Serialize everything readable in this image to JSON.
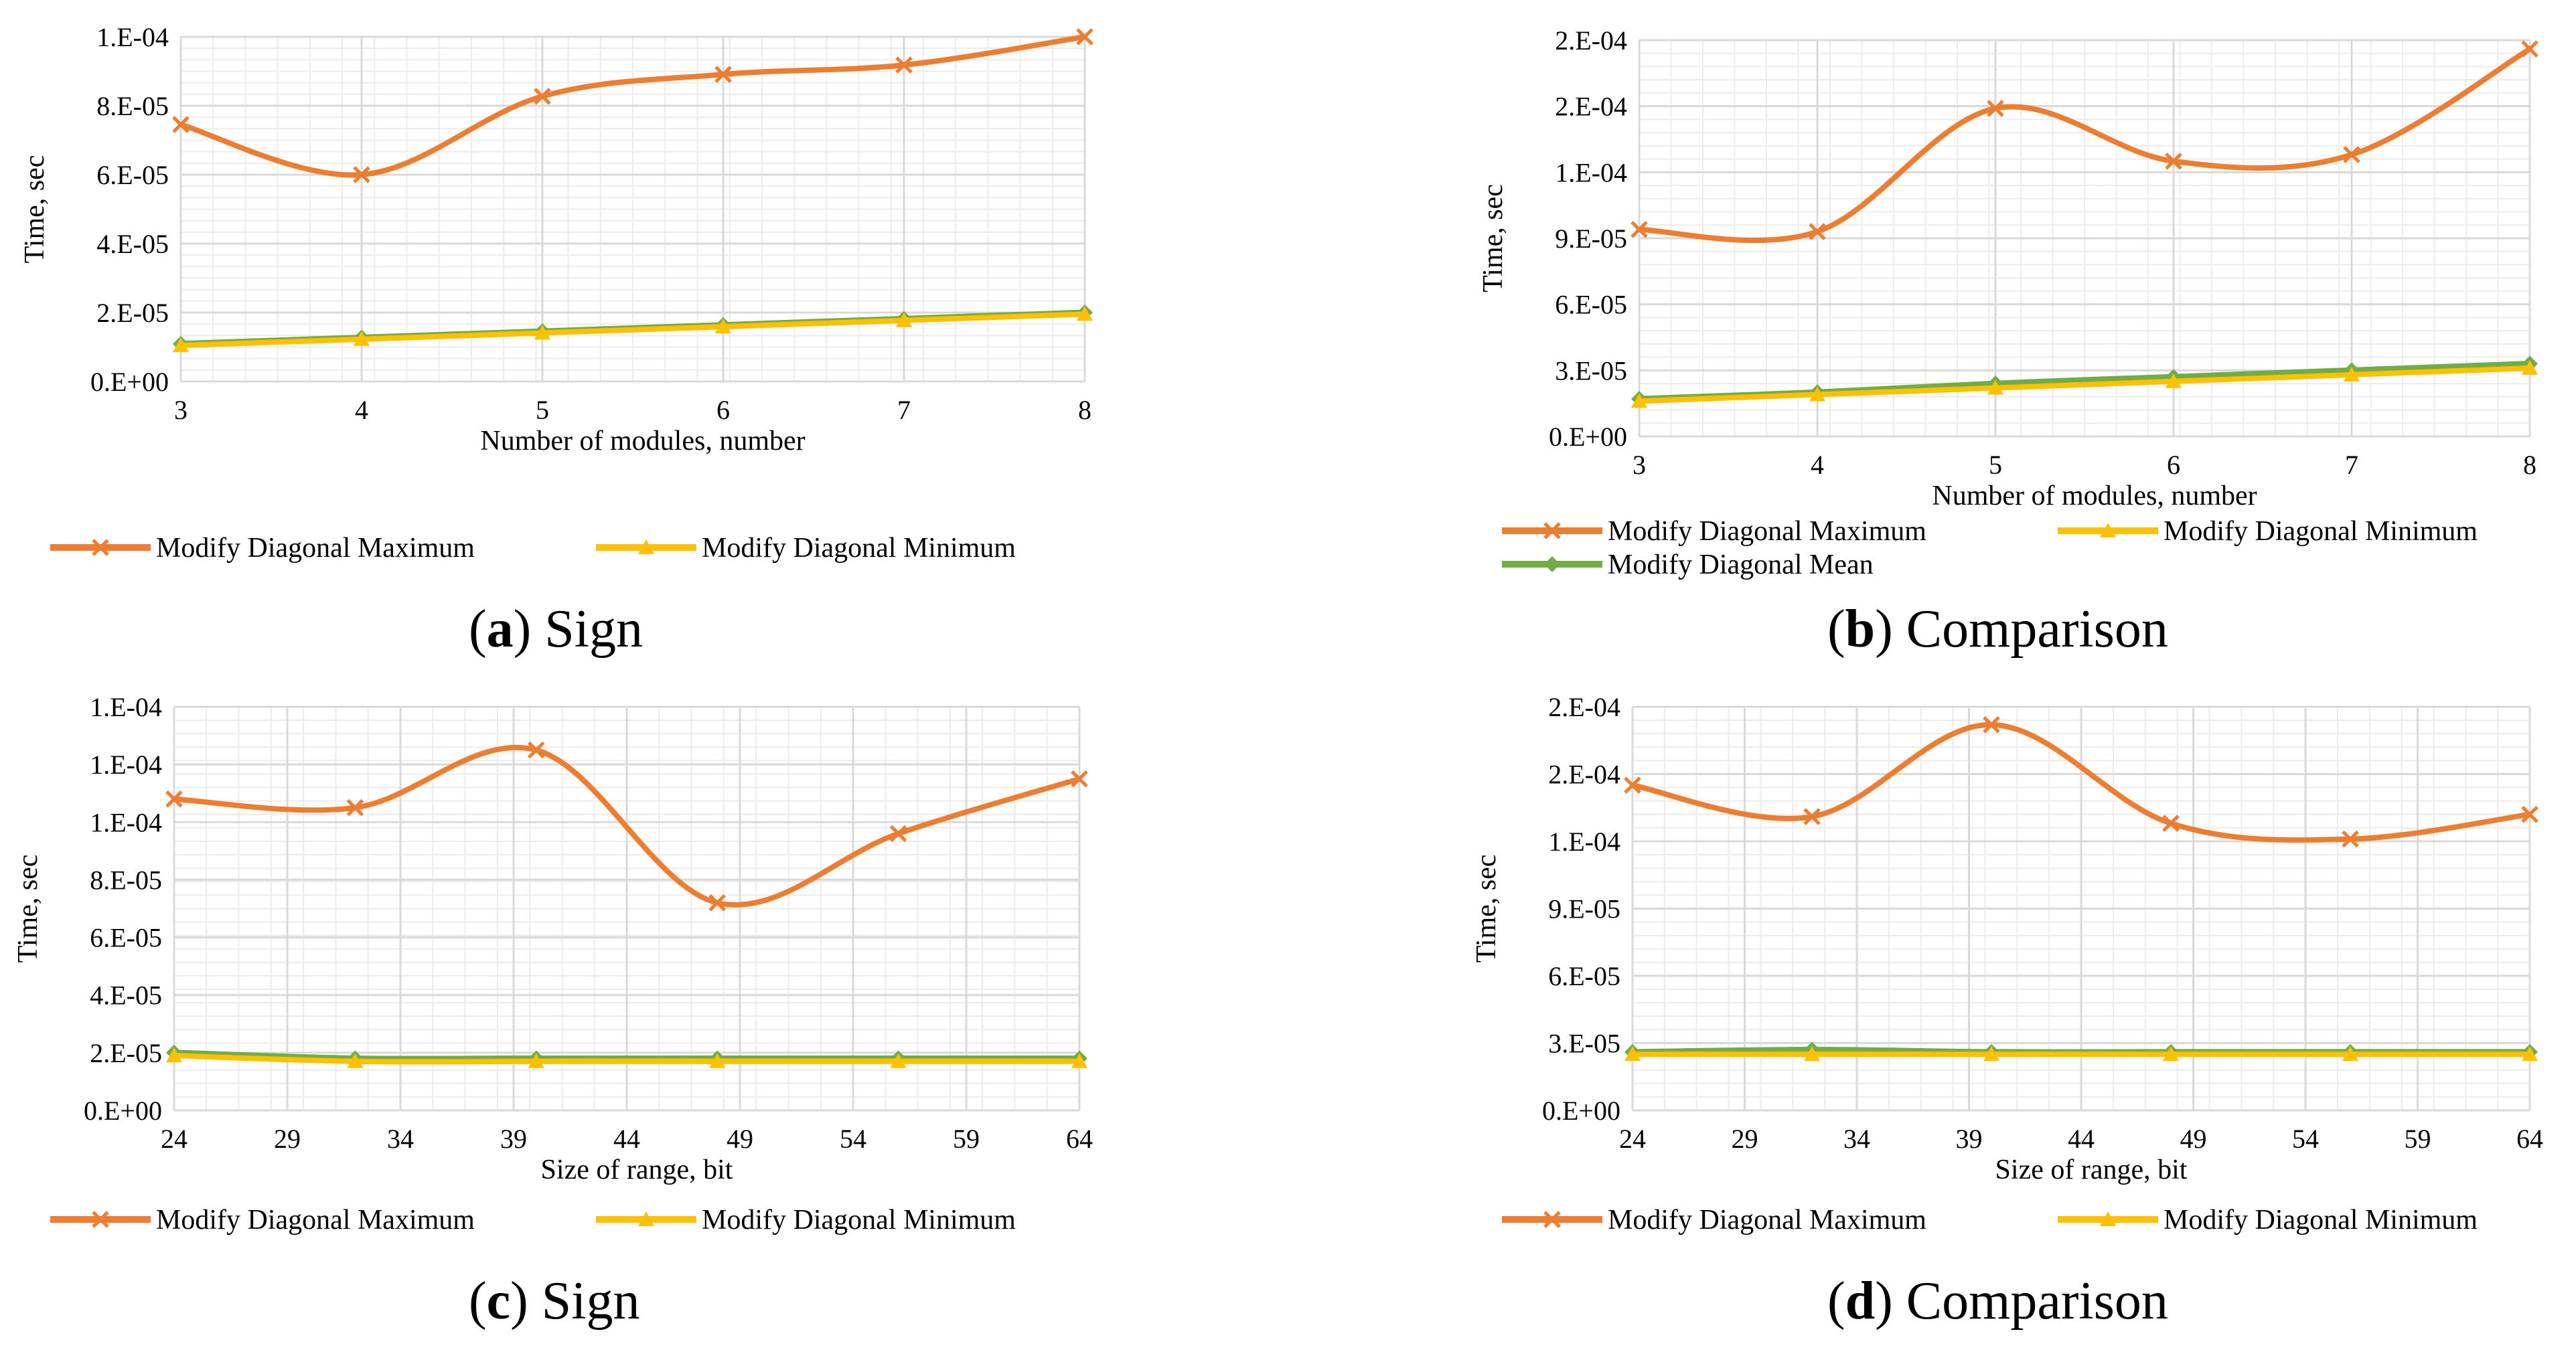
{
  "colors": {
    "max": "#ED7D31",
    "min": "#FFC000",
    "mean": "#70AD47",
    "grid_major": "#d9d9d9",
    "grid_minor": "#ececec"
  },
  "panels": [
    {
      "caption": {
        "letter": "a",
        "text": "Sign"
      },
      "chart_data": {
        "type": "line",
        "categories": [
          "3",
          "4",
          "5",
          "6",
          "7",
          "8"
        ],
        "xlabel": "Number of modules, number",
        "ylabel": "Time, sec",
        "yticks": [
          "0.E+00",
          "2.E-05",
          "4.E-05",
          "6.E-05",
          "8.E-05",
          "1.E-04"
        ],
        "ylim": [
          0,
          0.00011
        ],
        "grid": true,
        "legend_position": "bottom",
        "series": [
          {
            "name": "Modify Diagonal Maximum",
            "key": "max",
            "marker": "x",
            "values": [
              8.2e-05,
              6.6e-05,
              9.1e-05,
              9.8e-05,
              0.000101,
              0.00011
            ]
          },
          {
            "name": "Modify Diagonal Minimum",
            "key": "min",
            "marker": "triangle",
            "values": [
              1.15e-05,
              1.35e-05,
              1.55e-05,
              1.75e-05,
              1.95e-05,
              2.15e-05
            ]
          },
          {
            "key": "mean",
            "marker": "diamond",
            "in_legend": false,
            "values": [
              1.2e-05,
              1.4e-05,
              1.6e-05,
              1.8e-05,
              2e-05,
              2.2e-05
            ]
          }
        ]
      }
    },
    {
      "caption": {
        "letter": "b",
        "text": "Comparison"
      },
      "chart_data": {
        "type": "line",
        "categories": [
          "3",
          "4",
          "5",
          "6",
          "7",
          "8"
        ],
        "xlabel": "Number of modules, number",
        "ylabel": "Time, sec",
        "yticks": [
          "0.E+00",
          "3.E-05",
          "6.E-05",
          "9.E-05",
          "1.E-04",
          "2.E-04",
          "2.E-04"
        ],
        "ylim": [
          0,
          0.00018
        ],
        "grid": true,
        "legend_position": "bottom",
        "series": [
          {
            "name": "Modify Diagonal Maximum",
            "key": "max",
            "marker": "x",
            "values": [
              9.4e-05,
              9.3e-05,
              0.000149,
              0.000125,
              0.000128,
              0.000176
            ]
          },
          {
            "name": "Modify Diagonal Minimum",
            "key": "min",
            "marker": "triangle",
            "values": [
              1.6e-05,
              1.9e-05,
              2.2e-05,
              2.5e-05,
              2.8e-05,
              3.1e-05
            ]
          },
          {
            "name": "Modify Diagonal Mean",
            "key": "mean",
            "marker": "diamond",
            "values": [
              1.7e-05,
              2e-05,
              2.4e-05,
              2.7e-05,
              3e-05,
              3.3e-05
            ]
          }
        ]
      }
    },
    {
      "caption": {
        "letter": "c",
        "text": "Sign"
      },
      "chart_data": {
        "type": "line",
        "categories": [
          "24",
          "29",
          "34",
          "39",
          "44",
          "49",
          "54",
          "59",
          "64"
        ],
        "x": [
          24,
          32,
          40,
          48,
          56,
          64
        ],
        "xlim": [
          24,
          64
        ],
        "xlabel": "Size of range, bit",
        "ylabel": "Time, sec",
        "yticks": [
          "0.E+00",
          "2.E-05",
          "4.E-05",
          "6.E-05",
          "8.E-05",
          "1.E-04",
          "1.E-04",
          "1.E-04"
        ],
        "ylim": [
          0,
          0.00014
        ],
        "grid": true,
        "legend_position": "bottom",
        "series": [
          {
            "name": "Modify Diagonal Maximum",
            "key": "max",
            "marker": "x",
            "values": [
              0.000108,
              0.000105,
              0.000125,
              7.2e-05,
              9.6e-05,
              0.000115
            ]
          },
          {
            "name": "Modify Diagonal Minimum",
            "key": "min",
            "marker": "triangle",
            "values": [
              1.9e-05,
              1.7e-05,
              1.7e-05,
              1.7e-05,
              1.7e-05,
              1.7e-05
            ]
          },
          {
            "key": "mean",
            "marker": "diamond",
            "in_legend": false,
            "values": [
              2e-05,
              1.8e-05,
              1.8e-05,
              1.8e-05,
              1.8e-05,
              1.8e-05
            ]
          }
        ]
      }
    },
    {
      "caption": {
        "letter": "d",
        "text": "Comparison"
      },
      "chart_data": {
        "type": "line",
        "categories": [
          "24",
          "29",
          "34",
          "39",
          "44",
          "49",
          "54",
          "59",
          "64"
        ],
        "x": [
          24,
          32,
          40,
          48,
          56,
          64
        ],
        "xlim": [
          24,
          64
        ],
        "xlabel": "Size of range, bit",
        "ylabel": "Time, sec",
        "yticks": [
          "0.E+00",
          "3.E-05",
          "6.E-05",
          "9.E-05",
          "1.E-04",
          "2.E-04",
          "2.E-04"
        ],
        "ylim": [
          0,
          0.00018
        ],
        "grid": true,
        "legend_position": "bottom",
        "series": [
          {
            "name": "Modify Diagonal Maximum",
            "key": "max",
            "marker": "x",
            "values": [
              0.000145,
              0.000131,
              0.000172,
              0.000128,
              0.000121,
              0.000132
            ]
          },
          {
            "name": "Modify Diagonal Minimum",
            "key": "min",
            "marker": "triangle",
            "values": [
              2.5e-05,
              2.5e-05,
              2.5e-05,
              2.5e-05,
              2.5e-05,
              2.5e-05
            ]
          },
          {
            "key": "mean",
            "marker": "diamond",
            "in_legend": false,
            "values": [
              2.6e-05,
              2.7e-05,
              2.6e-05,
              2.6e-05,
              2.6e-05,
              2.6e-05
            ]
          }
        ]
      }
    }
  ]
}
